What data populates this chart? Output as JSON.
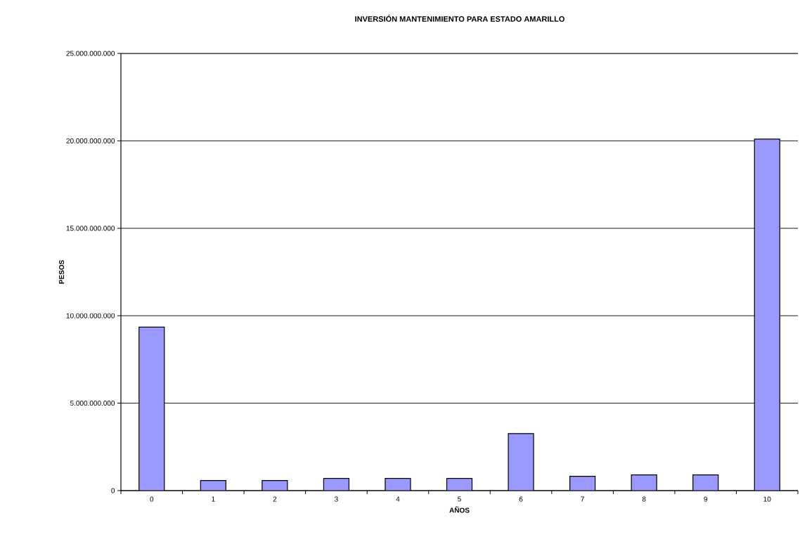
{
  "chart_data": {
    "type": "bar",
    "title": "INVERSIÓN MANTENIMIENTO PARA ESTADO AMARILLO",
    "xlabel": "AÑOS",
    "ylabel": "PESOS",
    "categories": [
      "0",
      "1",
      "2",
      "3",
      "4",
      "5",
      "6",
      "7",
      "8",
      "9",
      "10"
    ],
    "values": [
      9350000000,
      580000000,
      580000000,
      700000000,
      700000000,
      700000000,
      3260000000,
      820000000,
      900000000,
      900000000,
      20100000000
    ],
    "color": "#9999ff",
    "ylim": [
      0,
      25000000000
    ],
    "yticks": [
      {
        "value": 0,
        "label": "0"
      },
      {
        "value": 5000000000,
        "label": "5.000.000.000"
      },
      {
        "value": 10000000000,
        "label": "10.000.000.000"
      },
      {
        "value": 15000000000,
        "label": "15.000.000.000"
      },
      {
        "value": 20000000000,
        "label": "20.000.000.000"
      },
      {
        "value": 25000000000,
        "label": "25.000.000.000"
      }
    ],
    "grid": "y"
  }
}
